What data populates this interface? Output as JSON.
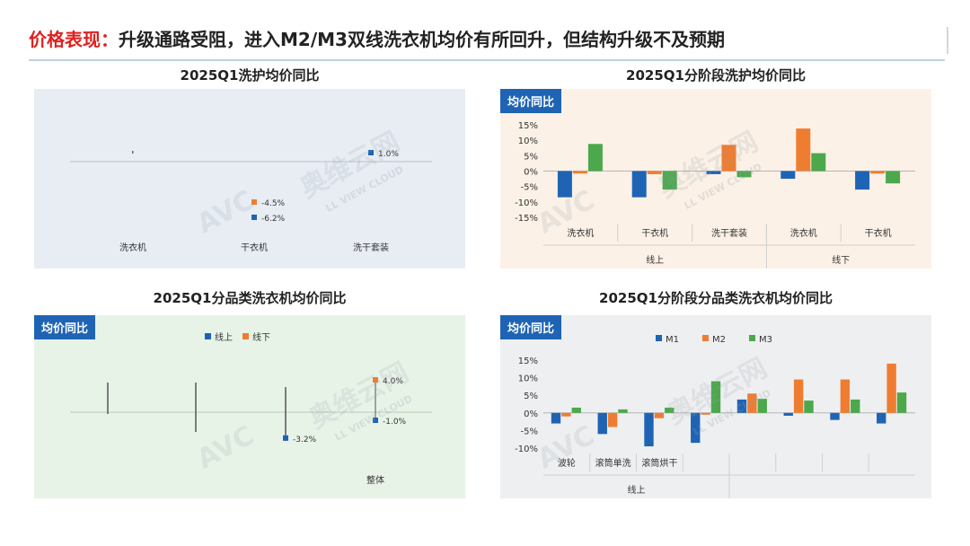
{
  "slide": {
    "title_lead": "价格表现：",
    "title_rest": "升级通路受阻，进入M2/M3双线洗衣机均价有所回升，但结构升级不及预期",
    "watermark_cn": "奥维云网",
    "watermark_en": "LL VIEW CLOUD",
    "watermark_logo": "AVC"
  },
  "chart_data": [
    {
      "type": "dot",
      "title": "2025Q1洗护均价同比",
      "categories": [
        "洗衣机",
        "干衣机",
        "洗干套装"
      ],
      "series": [
        {
          "color": "#1f64b4",
          "values": [
            null,
            -6.2,
            1.0
          ]
        },
        {
          "color": "#ef7d31",
          "values": [
            null,
            -4.5,
            null
          ]
        }
      ],
      "labels": {
        "干衣机": [
          "-4.5%",
          "-6.2%"
        ],
        "洗干套装": [
          "1.0%"
        ]
      },
      "bg": "#e8edf4"
    },
    {
      "type": "bar",
      "title": "2025Q1分阶段洗护均价同比",
      "badge": "均价同比",
      "categories": [
        "洗衣机",
        "干衣机",
        "洗干套装",
        "洗衣机",
        "干衣机"
      ],
      "groups": [
        {
          "label": "线上",
          "span": 3
        },
        {
          "label": "线下",
          "span": 2
        }
      ],
      "series": [
        {
          "color": "#1f64b4",
          "values": [
            -8.5,
            -8.5,
            -1.0,
            -2.5,
            -6.0
          ]
        },
        {
          "color": "#ef7d31",
          "values": [
            -0.8,
            -1.0,
            8.5,
            13.8,
            -0.8
          ]
        },
        {
          "color": "#4ca84c",
          "values": [
            8.8,
            -6.0,
            -2.0,
            5.8,
            -4.0
          ]
        }
      ],
      "yticks": [
        "15%",
        "10%",
        "5%",
        "0%",
        "-5%",
        "-10%",
        "-15%"
      ],
      "ylim": [
        -15,
        15
      ],
      "bg": "#fbf1e6"
    },
    {
      "type": "dot",
      "title": "2025Q1分品类洗衣机均价同比",
      "badge": "均价同比",
      "legend": [
        "线上",
        "线下"
      ],
      "legend_colors": [
        "#1f64b4",
        "#ef7d31"
      ],
      "categories": [
        "",
        "",
        "",
        "整体"
      ],
      "series": [
        {
          "name": "线上",
          "color": "#1f64b4",
          "values": [
            null,
            null,
            -3.2,
            -1.0
          ]
        },
        {
          "name": "线下",
          "color": "#ef7d31",
          "values": [
            null,
            null,
            null,
            4.0
          ]
        }
      ],
      "labels": {
        "c2": [
          "-3.2%"
        ],
        "c3": [
          "4.0%",
          "-1.0%"
        ]
      },
      "bg": "#e8f3e8"
    },
    {
      "type": "bar",
      "title": "2025Q1分阶段分品类洗衣机均价同比",
      "badge": "均价同比",
      "legend": [
        "M1",
        "M2",
        "M3"
      ],
      "categories": [
        "波轮",
        "滚筒单洗",
        "滚筒烘干",
        "",
        "",
        "",
        "",
        ""
      ],
      "groups": [
        {
          "label": "线上",
          "span": 4
        },
        {
          "label": "",
          "span": 4
        }
      ],
      "series": [
        {
          "name": "M1",
          "color": "#1f64b4",
          "values": [
            -3.0,
            -6.0,
            -9.5,
            -8.5,
            3.8,
            -0.8,
            -2.0,
            -3.0
          ]
        },
        {
          "name": "M2",
          "color": "#ef7d31",
          "values": [
            -1.0,
            -4.0,
            -1.5,
            -0.5,
            5.5,
            9.5,
            9.5,
            14.0
          ]
        },
        {
          "name": "M3",
          "color": "#4ca84c",
          "values": [
            1.5,
            1.0,
            1.5,
            9.0,
            4.0,
            3.5,
            3.8,
            5.8
          ]
        }
      ],
      "yticks": [
        "15%",
        "10%",
        "5%",
        "0%",
        "-5%",
        "-10%"
      ],
      "ylim": [
        -10,
        15
      ],
      "bg": "#eeeff1"
    }
  ]
}
